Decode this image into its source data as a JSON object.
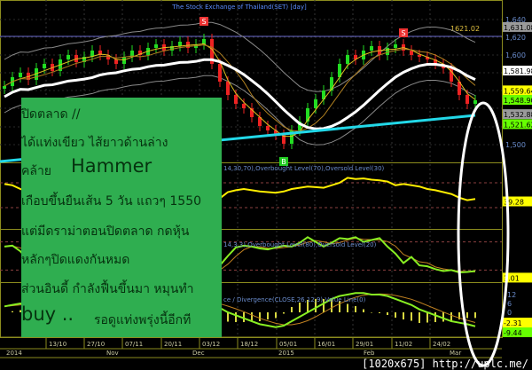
{
  "chart_data": {
    "type": "candlestick",
    "title": "The Stock Exchange of Thailand(SET) [day]",
    "price_ticks": [
      "1,640",
      "1,620",
      "1,600",
      "1,500"
    ],
    "price_ylim": [
      1480,
      1660
    ],
    "close": [
      1565,
      1575,
      1580,
      1572,
      1585,
      1590,
      1582,
      1595,
      1600,
      1592,
      1598,
      1605,
      1600,
      1595,
      1590,
      1598,
      1605,
      1600,
      1608,
      1612,
      1605,
      1610,
      1615,
      1608,
      1612,
      1618,
      1590,
      1570,
      1555,
      1545,
      1540,
      1530,
      1520,
      1515,
      1510,
      1500,
      1515,
      1525,
      1540,
      1550,
      1560,
      1575,
      1590,
      1600,
      1595,
      1605,
      1610,
      1600,
      1608,
      1612,
      1605,
      1600,
      1598,
      1595,
      1590,
      1585,
      1570,
      1555,
      1545,
      1549
    ],
    "long_ma": [
      1505,
      1532
    ],
    "price_badges": [
      {
        "text": "1,631.08",
        "color": "#9a9a9a",
        "value": 1631.08
      },
      {
        "text": "1,581.98",
        "color": "#ffffff",
        "value": 1581.98
      },
      {
        "text": "1,559.64",
        "color": "#ffff00",
        "value": 1559.64
      },
      {
        "text": "1,548.90",
        "color": "#66ff00",
        "value": 1548.9
      },
      {
        "text": "1,532.88",
        "color": "#9a9a9a",
        "value": 1532.88
      },
      {
        "text": "1,521.62",
        "color": "#66ff00",
        "value": 1521.62
      }
    ],
    "resistance": {
      "label": "1621.02",
      "value": 1621.02
    },
    "signals": [
      {
        "label": "S",
        "index": 25
      },
      {
        "label": "B",
        "index": 35
      },
      {
        "label": "S",
        "index": 50
      }
    ],
    "rsi": {
      "label": "14,30,70),Overbought Level(70),Oversold Level(30)",
      "values": [
        68,
        66,
        60,
        55,
        50,
        48,
        52,
        56,
        60,
        62,
        58,
        55,
        57,
        60,
        62,
        58,
        55,
        52,
        50,
        48,
        45,
        40,
        38,
        36,
        34,
        36,
        40,
        45,
        55,
        58,
        60,
        58,
        56,
        55,
        54,
        56,
        60,
        62,
        64,
        63,
        62,
        66,
        70,
        78,
        76,
        77,
        75,
        74,
        72,
        66,
        68,
        66,
        64,
        60,
        58,
        55,
        52,
        46,
        42,
        44
      ],
      "badge": "39.28",
      "levels": [
        70,
        30
      ]
    },
    "stoch": {
      "label": "14,3,3),Overbought Level(80),Oversold Level(20)",
      "values": [
        70,
        72,
        60,
        40,
        30,
        25,
        35,
        50,
        60,
        55,
        45,
        40,
        38,
        42,
        50,
        55,
        52,
        48,
        40,
        30,
        25,
        20,
        15,
        10,
        8,
        12,
        18,
        30,
        50,
        68,
        72,
        70,
        66,
        64,
        68,
        72,
        70,
        78,
        90,
        80,
        70,
        78,
        88,
        86,
        90,
        80,
        84,
        88,
        70,
        55,
        35,
        48,
        30,
        28,
        22,
        18,
        20,
        15,
        16,
        18
      ],
      "badge": "3.01",
      "levels": [
        80,
        20
      ]
    },
    "macd": {
      "label": "ce / Divergence(CLOSE,26,12,9),Value Line(0)",
      "ticks": [
        "12",
        "6",
        "0"
      ],
      "values": [
        4,
        5,
        6,
        5,
        3,
        1,
        -1,
        -3,
        -4,
        -5,
        -6,
        -7,
        -8,
        -9,
        -10,
        -8,
        -4,
        0,
        2,
        4,
        6,
        7,
        8,
        8,
        7,
        6,
        5,
        3,
        0,
        -2,
        -4,
        -6,
        -8,
        -9,
        -10,
        -9,
        -6,
        -3,
        0,
        3,
        6,
        9,
        11,
        12,
        13,
        13,
        12,
        12,
        11,
        9,
        7,
        5,
        2,
        0,
        -2,
        -4,
        -6,
        -7,
        -8,
        -9.44
      ],
      "badges": [
        {
          "text": "-2.31",
          "color": "#ffff00"
        },
        {
          "text": "-9.44",
          "color": "#66ff00"
        }
      ]
    },
    "dates": [
      "13/10",
      "27/10",
      "07/11",
      "20/11",
      "03/12",
      "18/12",
      "05/01",
      "16/01",
      "29/01",
      "11/02",
      "24/02"
    ],
    "months": [
      "2014",
      "Nov",
      "Dec",
      "2015",
      "Feb",
      "Mar"
    ]
  },
  "note": {
    "lines": [
      "ปิดตลาด //",
      "ได้แท่งเขียว ไส้ยาวด้านล่าง",
      "คล้าย",
      "Hammer",
      "เกือบขึ้นยืนเส้น 5 วัน แถวๆ 1550",
      "แต่มีดราม่าตอนปิดตลาด กดหุ้น",
      "หลักๆปิดแดงกันหมด",
      "ส่วนอินดี้ กำลังฟื้นขึ้นมา หมุนทำ",
      "buy ..",
      "รอดูแท่งพรุ่งนี้อีกที"
    ]
  },
  "watermark": "[1020x675] http://uplc.me/"
}
